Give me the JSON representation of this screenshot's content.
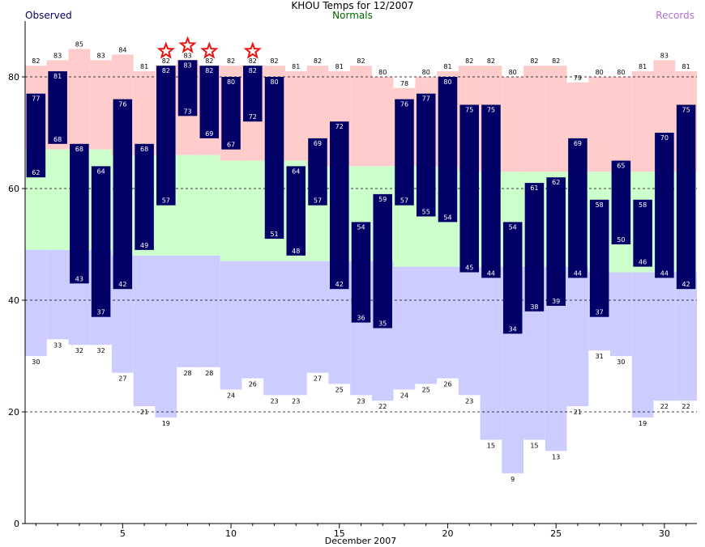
{
  "title": "KHOU Temps for 12/2007",
  "legend": {
    "observed": "Observed",
    "normals": "Normals",
    "records": "Records"
  },
  "colors": {
    "observed": "#000066",
    "normal_band": "#ccffcc",
    "record_high_band": "#ffcccc",
    "record_low_band": "#ccccff",
    "record_star": "#ee1111",
    "observed_label": "#ffffff",
    "observed_legend": "#000066",
    "normals_legend": "#006600",
    "records_legend": "#b070d0"
  },
  "chart_data": {
    "type": "bar",
    "title": "KHOU Temps for 12/2007",
    "xlabel": "December 2007",
    "ylabel": "",
    "xlim": [
      0.5,
      31.5
    ],
    "ylim": [
      0,
      90
    ],
    "xticks": [
      5,
      10,
      15,
      20,
      25,
      30
    ],
    "yticks": [
      0,
      20,
      40,
      60,
      80
    ],
    "grid_y": [
      20,
      40,
      60,
      80
    ],
    "days": [
      1,
      2,
      3,
      4,
      5,
      6,
      7,
      8,
      9,
      10,
      11,
      12,
      13,
      14,
      15,
      16,
      17,
      18,
      19,
      20,
      21,
      22,
      23,
      24,
      25,
      26,
      27,
      28,
      29,
      30,
      31
    ],
    "series": [
      {
        "name": "Observed",
        "field": "high",
        "values": [
          77,
          81,
          68,
          64,
          76,
          68,
          82,
          83,
          82,
          80,
          82,
          80,
          64,
          69,
          72,
          54,
          59,
          76,
          77,
          80,
          75,
          75,
          54,
          61,
          62,
          69,
          58,
          65,
          58,
          70,
          75
        ]
      },
      {
        "name": "Observed",
        "field": "low",
        "values": [
          62,
          68,
          43,
          37,
          42,
          49,
          57,
          73,
          69,
          67,
          72,
          51,
          48,
          57,
          42,
          36,
          35,
          57,
          55,
          54,
          45,
          44,
          34,
          38,
          39,
          44,
          37,
          50,
          46,
          44,
          42
        ]
      },
      {
        "name": "Normals",
        "field": "high",
        "values": [
          67,
          67,
          67,
          67,
          66,
          66,
          66,
          66,
          66,
          65,
          65,
          65,
          65,
          64,
          64,
          64,
          64,
          64,
          64,
          64,
          63,
          63,
          63,
          63,
          63,
          63,
          63,
          63,
          63,
          63,
          63
        ]
      },
      {
        "name": "Normals",
        "field": "low",
        "values": [
          49,
          49,
          49,
          49,
          48,
          48,
          48,
          48,
          48,
          47,
          47,
          47,
          47,
          47,
          47,
          47,
          47,
          46,
          46,
          46,
          46,
          46,
          46,
          46,
          46,
          46,
          45,
          45,
          45,
          45,
          45
        ]
      },
      {
        "name": "Records",
        "field": "high",
        "values": [
          82,
          83,
          85,
          83,
          84,
          81,
          82,
          83,
          82,
          82,
          82,
          82,
          81,
          82,
          81,
          82,
          80,
          78,
          80,
          81,
          82,
          82,
          80,
          82,
          82,
          79,
          80,
          80,
          81,
          83,
          81
        ]
      },
      {
        "name": "Records",
        "field": "low",
        "values": [
          30,
          33,
          32,
          32,
          27,
          21,
          19,
          28,
          28,
          24,
          26,
          23,
          23,
          27,
          25,
          23,
          22,
          24,
          25,
          26,
          23,
          15,
          9,
          15,
          13,
          21,
          31,
          30,
          19,
          22,
          22
        ]
      }
    ],
    "record_high_set_days": [
      7,
      8,
      9,
      11
    ]
  }
}
